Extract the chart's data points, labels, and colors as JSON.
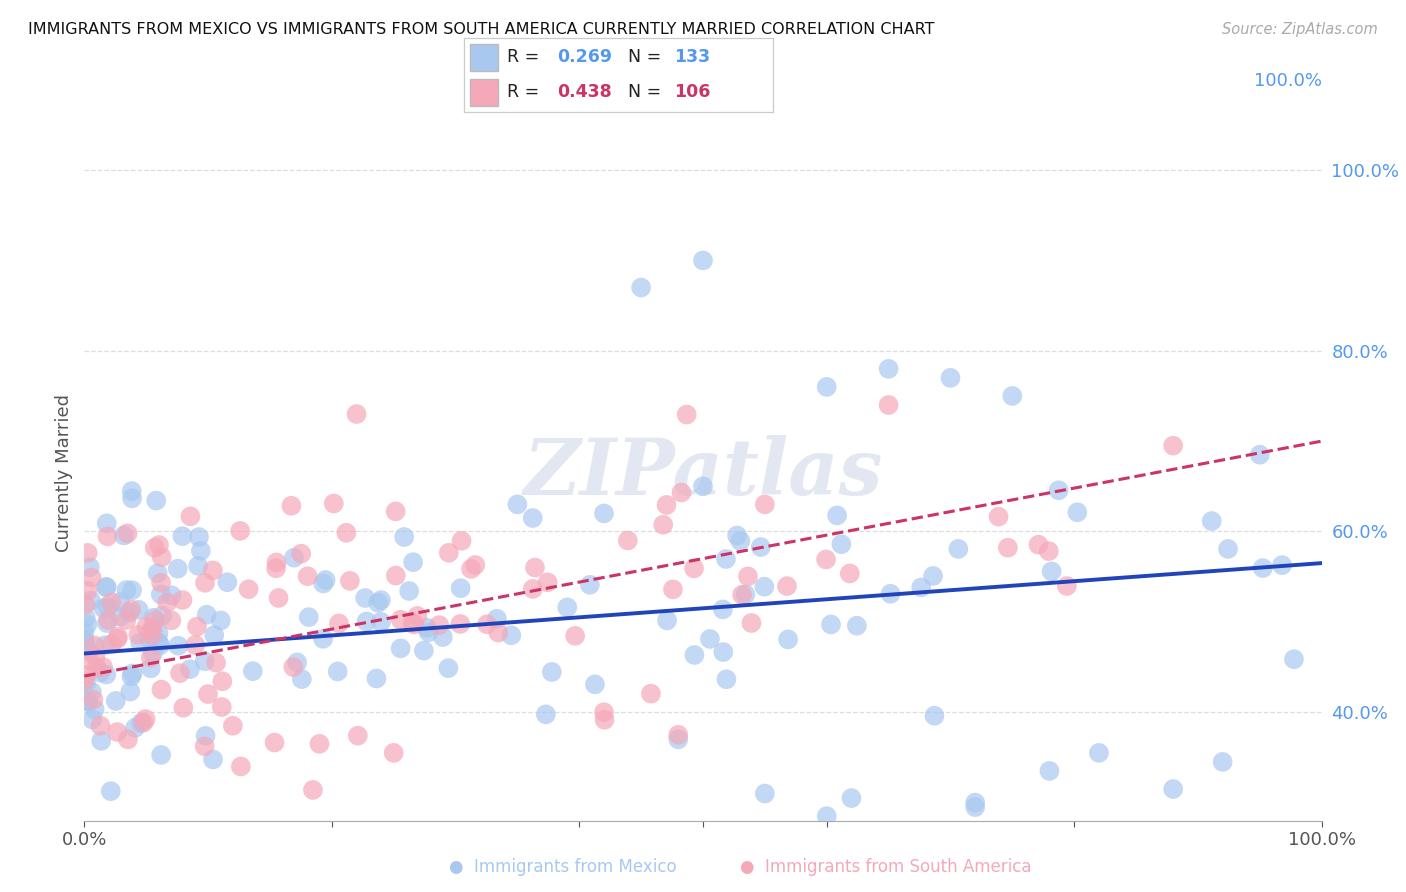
{
  "title": "IMMIGRANTS FROM MEXICO VS IMMIGRANTS FROM SOUTH AMERICA CURRENTLY MARRIED CORRELATION CHART",
  "source": "Source: ZipAtlas.com",
  "ylabel": "Currently Married",
  "legend_label1": "Immigrants from Mexico",
  "legend_label2": "Immigrants from South America",
  "R1": 0.269,
  "N1": 133,
  "R2": 0.438,
  "N2": 106,
  "color_mexico": "#a8c8f0",
  "color_mexico_line": "#2244bb",
  "color_sa": "#f5a8b8",
  "color_sa_line": "#cc3366",
  "color_yticks": "#5599ee",
  "watermark": "ZIPatlas",
  "xlim": [
    0.0,
    1.0
  ],
  "ylim": [
    0.28,
    1.05
  ],
  "background": "#ffffff",
  "grid_color": "#dddddd"
}
